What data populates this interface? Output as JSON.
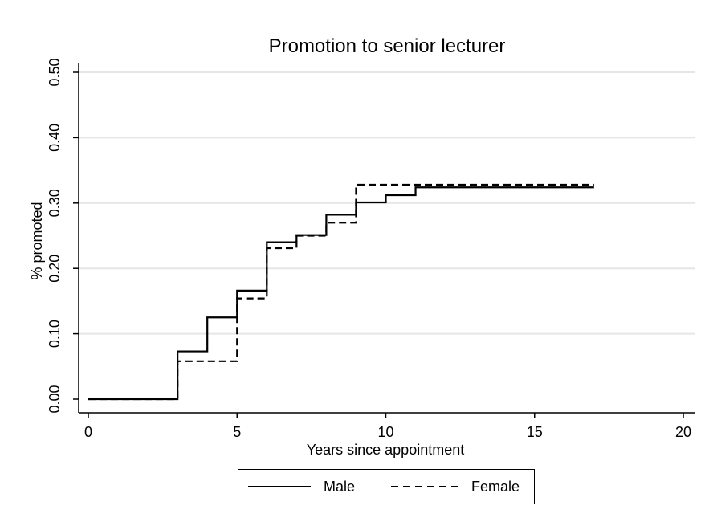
{
  "chart_data": {
    "type": "line",
    "title": "Promotion to senior lecturer",
    "xlabel": "Years since appointment",
    "ylabel": "% promoted",
    "xlim": [
      0,
      20
    ],
    "ylim": [
      0,
      0.5
    ],
    "x_ticks": [
      "0",
      "5",
      "10",
      "15",
      "20"
    ],
    "y_ticks": [
      "0.00",
      "0.10",
      "0.20",
      "0.30",
      "0.40",
      "0.50"
    ],
    "grid": "horizontal",
    "legend_position": "bottom",
    "step": true,
    "series": [
      {
        "name": "Male",
        "line_style": "solid",
        "x": [
          0,
          3,
          4,
          5,
          6,
          7,
          8,
          9,
          10,
          11,
          17
        ],
        "y": [
          0,
          0.073,
          0.125,
          0.166,
          0.24,
          0.251,
          0.282,
          0.301,
          0.312,
          0.324,
          0.324
        ]
      },
      {
        "name": "Female",
        "line_style": "dashed",
        "x": [
          0,
          3,
          5,
          6,
          7,
          8,
          9,
          17
        ],
        "y": [
          0,
          0.058,
          0.154,
          0.231,
          0.25,
          0.27,
          0.328,
          0.328
        ]
      }
    ]
  },
  "colors": {
    "line": "#000000",
    "grid": "#e6e6e6"
  }
}
